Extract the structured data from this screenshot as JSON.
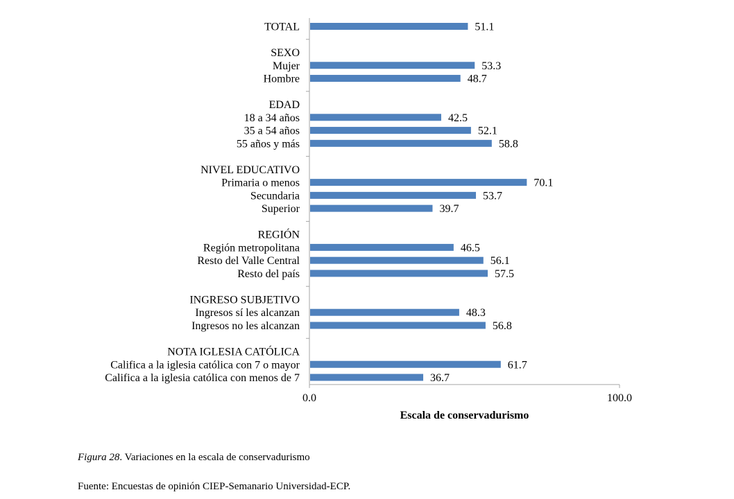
{
  "chart_data": {
    "type": "bar",
    "orientation": "horizontal",
    "xlabel": "Escala de conservadurismo",
    "xlim": [
      0,
      100
    ],
    "x_ticks": [
      "0.0",
      "100.0"
    ],
    "grid": false,
    "bar_color": "#4f81bd",
    "rows": [
      {
        "kind": "bar",
        "label": "TOTAL",
        "value": 51.1,
        "value_label": "51.1"
      },
      {
        "kind": "header",
        "label": "SEXO"
      },
      {
        "kind": "bar",
        "label": "Mujer",
        "value": 53.3,
        "value_label": "53.3"
      },
      {
        "kind": "bar",
        "label": "Hombre",
        "value": 48.7,
        "value_label": "48.7"
      },
      {
        "kind": "header",
        "label": "EDAD"
      },
      {
        "kind": "bar",
        "label": "18 a 34 años",
        "value": 42.5,
        "value_label": "42.5"
      },
      {
        "kind": "bar",
        "label": "35 a 54 años",
        "value": 52.1,
        "value_label": "52.1"
      },
      {
        "kind": "bar",
        "label": "55 años y más",
        "value": 58.8,
        "value_label": "58.8"
      },
      {
        "kind": "header",
        "label": "NIVEL EDUCATIVO"
      },
      {
        "kind": "bar",
        "label": "Primaria o menos",
        "value": 70.1,
        "value_label": "70.1"
      },
      {
        "kind": "bar",
        "label": "Secundaria",
        "value": 53.7,
        "value_label": "53.7"
      },
      {
        "kind": "bar",
        "label": "Superior",
        "value": 39.7,
        "value_label": "39.7"
      },
      {
        "kind": "header",
        "label": "REGIÓN"
      },
      {
        "kind": "bar",
        "label": "Región metropolitana",
        "value": 46.5,
        "value_label": "46.5"
      },
      {
        "kind": "bar",
        "label": "Resto del Valle Central",
        "value": 56.1,
        "value_label": "56.1"
      },
      {
        "kind": "bar",
        "label": "Resto del país",
        "value": 57.5,
        "value_label": "57.5"
      },
      {
        "kind": "header",
        "label": "INGRESO SUBJETIVO"
      },
      {
        "kind": "bar",
        "label": "Ingresos sí les alcanzan",
        "value": 48.3,
        "value_label": "48.3"
      },
      {
        "kind": "bar",
        "label": "Ingresos no les alcanzan",
        "value": 56.8,
        "value_label": "56.8"
      },
      {
        "kind": "header",
        "label": "NOTA IGLESIA CATÓLICA"
      },
      {
        "kind": "bar",
        "label": "Califica a la iglesia católica con 7 o mayor",
        "value": 61.7,
        "value_label": "61.7"
      },
      {
        "kind": "bar",
        "label": "Califica a la iglesia católica con menos de 7",
        "value": 36.7,
        "value_label": "36.7"
      }
    ]
  },
  "caption": {
    "figure_number": "Figura 28",
    "figure_title": ". Variaciones en la escala de conservadurismo",
    "source": "Fuente: Encuestas de opinión CIEP-Semanario Universidad-ECP."
  }
}
